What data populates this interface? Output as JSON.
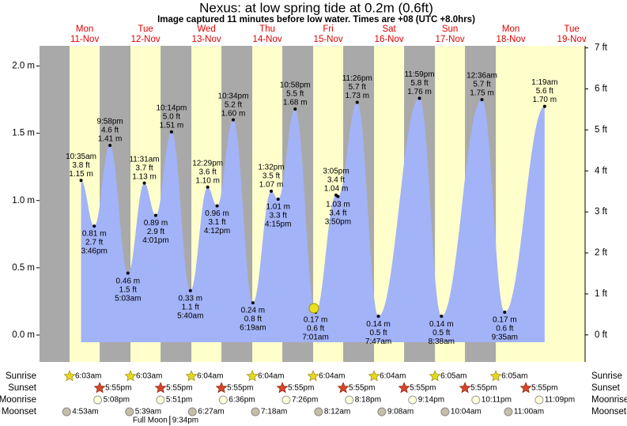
{
  "chart_data": {
    "type": "tide",
    "title": "Nexus: at low  spring tide at 0.2m (0.6ft)",
    "subtitle": "Image captured 11 minutes before low water. Times are +08 (UTC +8.0hrs)",
    "days": [
      {
        "weekday": "Mon",
        "date": "11-Nov"
      },
      {
        "weekday": "Tue",
        "date": "12-Nov"
      },
      {
        "weekday": "Wed",
        "date": "13-Nov"
      },
      {
        "weekday": "Thu",
        "date": "14-Nov"
      },
      {
        "weekday": "Fri",
        "date": "15-Nov"
      },
      {
        "weekday": "Sat",
        "date": "16-Nov"
      },
      {
        "weekday": "Sun",
        "date": "17-Nov"
      },
      {
        "weekday": "Mon",
        "date": "18-Nov"
      },
      {
        "weekday": "Tue",
        "date": "19-Nov"
      }
    ],
    "tides": {
      "color": "#a3b3f8",
      "times": [
        "10:35am",
        "3:46pm",
        "9:58pm",
        "5:03am",
        "11:31am",
        "4:01pm",
        "10:14pm",
        "5:40am",
        "12:29pm",
        "4:12pm",
        "10:34pm",
        "6:19am",
        "1:32pm",
        "4:15pm",
        "10:58pm",
        "7:01am",
        "3:05pm",
        "3:50pm",
        "11:26pm",
        "7:47am",
        "11:59pm",
        "8:38am",
        "12:36am",
        "9:35am",
        "1:19am"
      ],
      "values": [
        1.15,
        0.81,
        1.41,
        0.46,
        1.13,
        0.89,
        1.51,
        0.33,
        1.1,
        0.96,
        1.6,
        0.24,
        1.07,
        1.01,
        1.68,
        0.17,
        1.04,
        1.03,
        1.73,
        0.14,
        1.76,
        0.14,
        1.75,
        0.17,
        1.7
      ],
      "value_labels": [
        "1.15 m",
        "0.81 m",
        "1.41 m",
        "0.46 m",
        "1.13 m",
        "0.89 m",
        "1.51 m",
        "0.33 m",
        "1.10 m",
        "0.96 m",
        "1.60 m",
        "0.24 m",
        "1.07 m",
        "1.01 m",
        "1.68 m",
        "0.17 m",
        "1.04 m",
        "1.03 m",
        "1.73 m",
        "0.14 m",
        "1.76 m",
        "0.14 m",
        "1.75 m",
        "0.17 m",
        "1.70 m"
      ],
      "ft_values": [
        3.8,
        2.7,
        4.6,
        1.5,
        3.7,
        2.9,
        5.0,
        1.1,
        3.6,
        3.1,
        5.2,
        0.8,
        3.5,
        3.3,
        5.5,
        0.6,
        3.4,
        3.4,
        5.7,
        0.5,
        5.8,
        0.5,
        5.7,
        0.6,
        5.6
      ],
      "ft_labels": [
        "3.8 ft",
        "2.7 ft",
        "4.6 ft",
        "1.5 ft",
        "3.7 ft",
        "2.9 ft",
        "5.0 ft",
        "1.1 ft",
        "3.6 ft",
        "3.1 ft",
        "5.2 ft",
        "0.8 ft",
        "3.5 ft",
        "3.3 ft",
        "5.5 ft",
        "0.6 ft",
        "3.4 ft",
        "3.4 ft",
        "5.7 ft",
        "0.5 ft",
        "5.8 ft",
        "0.5 ft",
        "5.7 ft",
        "0.6 ft",
        "5.6 ft"
      ]
    },
    "ylim": [
      -0.2,
      2.15
    ],
    "yticks": [
      {
        "value": 0,
        "label": "0.0 m"
      },
      {
        "value": 0.5,
        "label": "0.5 m"
      },
      {
        "value": 1,
        "label": "1.0 m"
      },
      {
        "value": 1.5,
        "label": "1.5 m"
      },
      {
        "value": 2,
        "label": "2.0 m"
      }
    ],
    "y2lim": [
      -0.66,
      7.05
    ],
    "y2ticks": [
      {
        "value": 0,
        "label": "0 ft"
      },
      {
        "value": 1,
        "label": "1 ft"
      },
      {
        "value": 2,
        "label": "2 ft"
      },
      {
        "value": 3,
        "label": "3 ft"
      },
      {
        "value": 4,
        "label": "4 ft"
      },
      {
        "value": 5,
        "label": "5 ft"
      },
      {
        "value": 6,
        "label": "6 ft"
      },
      {
        "value": 7,
        "label": "7 ft"
      }
    ],
    "day_color": "#ffffcc",
    "night_color": "#a9a9a9"
  },
  "almanac": {
    "row_labels": [
      "Sunrise",
      "Sunset",
      "Moonrise",
      "Moonset"
    ],
    "days": [
      {
        "sunrise": "6:03am",
        "sunset": "5:55pm",
        "moonrise": "5:08pm",
        "moonset": "4:53am"
      },
      {
        "sunrise": "6:03am",
        "sunset": "5:55pm",
        "moonrise": "5:51pm",
        "moonset": "5:39am",
        "phase": {
          "name": "Full Moon",
          "time": "9:34pm"
        }
      },
      {
        "sunrise": "6:04am",
        "sunset": "5:55pm",
        "moonrise": "6:36pm",
        "moonset": "6:27am"
      },
      {
        "sunrise": "6:04am",
        "sunset": "5:55pm",
        "moonrise": "7:26pm",
        "moonset": "7:18am"
      },
      {
        "sunrise": "6:04am",
        "sunset": "5:55pm",
        "moonrise": "8:18pm",
        "moonset": "8:12am"
      },
      {
        "sunrise": "6:04am",
        "sunset": "5:55pm",
        "moonrise": "9:14pm",
        "moonset": "9:08am"
      },
      {
        "sunrise": "6:05am",
        "sunset": "5:55pm",
        "moonrise": "10:11pm",
        "moonset": "10:04am"
      },
      {
        "sunrise": "6:05am",
        "sunset": "5:55pm",
        "moonrise": "11:09pm",
        "moonset": "11:00am"
      }
    ]
  }
}
